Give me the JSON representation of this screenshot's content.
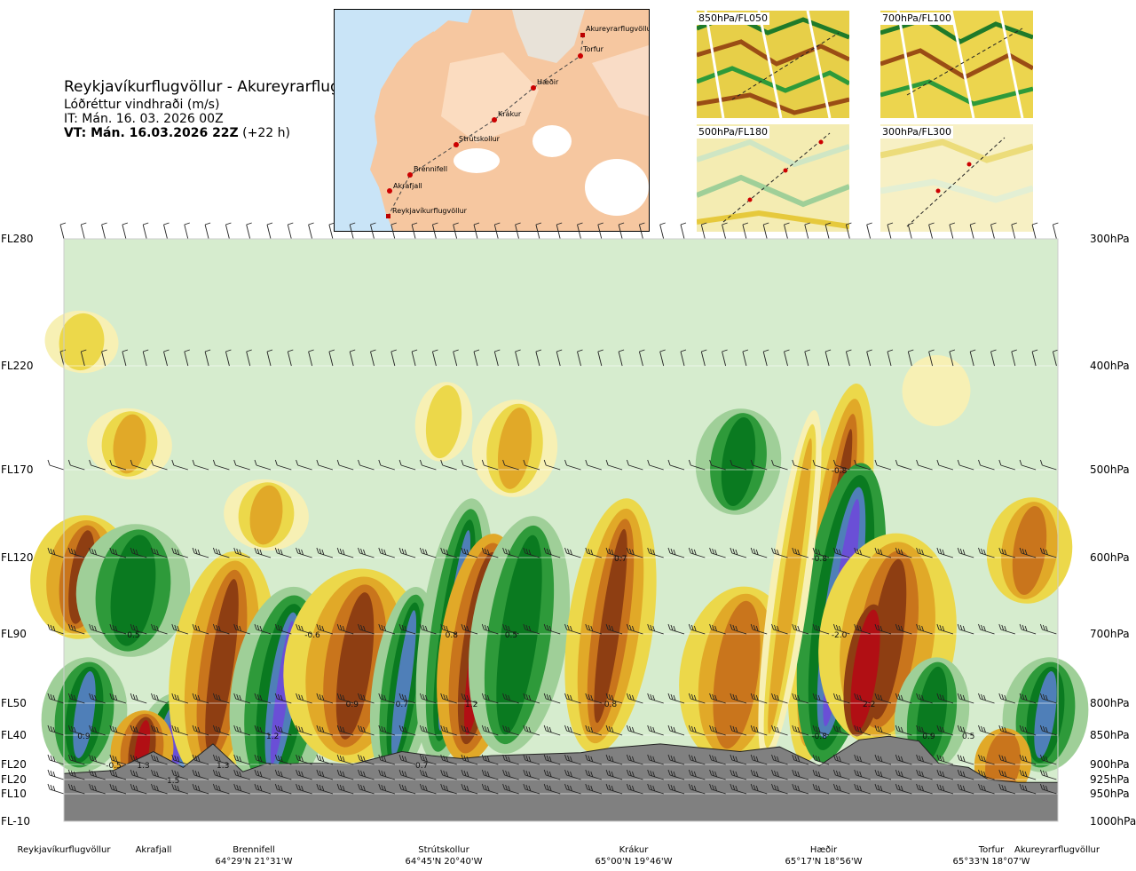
{
  "header": {
    "title": "Reykjavíkurflugvöllur - Akureyrarflugvöllur",
    "variable": "Lóðréttur vindhraði (m/s)",
    "issue_time": "IT: Mán. 16. 03. 2026 00Z",
    "valid_time": "VT: Mán. 16.03.2026 22Z",
    "lead_time": "(+22 h)"
  },
  "map": {
    "places": [
      "Akureyrarflugvöllur",
      "Torfur",
      "Hæðir",
      "Krákur",
      "Strútskollur",
      "Brennifell",
      "Akrafjall",
      "Reykjavíkurflugvöllur"
    ]
  },
  "thumbnails": [
    "850hPa/FL050",
    "700hPa/FL100",
    "500hPa/FL180",
    "300hPa/FL300"
  ],
  "chart_data": {
    "type": "heatmap",
    "title": "Reykjavíkurflugvöllur - Akureyrarflugvöllur",
    "variable": "Lóðréttur vindhraði (m/s)",
    "left_axis": [
      "FL280",
      "FL220",
      "FL170",
      "FL120",
      "FL90",
      "FL50",
      "FL40",
      "FL20",
      "FL20",
      "FL10",
      "FL-10"
    ],
    "right_axis": [
      "300hPa",
      "400hPa",
      "500hPa",
      "600hPa",
      "700hPa",
      "800hPa",
      "850hPa",
      "900hPa",
      "925hPa",
      "950hPa",
      "1000hPa"
    ],
    "pressure_levels_hPa": [
      300,
      400,
      500,
      600,
      700,
      800,
      850,
      900,
      925,
      950,
      1000
    ],
    "locations": [
      {
        "name": "Reykjavíkurflugvöllur",
        "coord": ""
      },
      {
        "name": "Akrafjall",
        "coord": ""
      },
      {
        "name": "Brennifell",
        "coord": "64°29'N 21°31'W"
      },
      {
        "name": "Strútskollur",
        "coord": "64°45'N 20°40'W"
      },
      {
        "name": "Krákur",
        "coord": "65°00'N 19°46'W"
      },
      {
        "name": "Hæðir",
        "coord": "65°17'N 18°56'W"
      },
      {
        "name": "Torfur",
        "coord": "65°33'N 18°07'W"
      },
      {
        "name": "Akureyrarflugvöllur",
        "coord": ""
      }
    ],
    "annotations": [
      {
        "text": "-0.8",
        "pos": 0.78,
        "hPa": 500
      },
      {
        "text": "0.7",
        "pos": 0.56,
        "hPa": 600
      },
      {
        "text": "-0.8",
        "pos": 0.76,
        "hPa": 600
      },
      {
        "text": "0.5",
        "pos": 0.07,
        "hPa": 700
      },
      {
        "text": "-0.6",
        "pos": 0.25,
        "hPa": 700
      },
      {
        "text": "0.8",
        "pos": 0.39,
        "hPa": 700
      },
      {
        "text": "0.5",
        "pos": 0.45,
        "hPa": 700
      },
      {
        "text": "-2.0",
        "pos": 0.78,
        "hPa": 700
      },
      {
        "text": "0.9",
        "pos": 0.29,
        "hPa": 800
      },
      {
        "text": "0.7",
        "pos": 0.34,
        "hPa": 800
      },
      {
        "text": "1.2",
        "pos": 0.41,
        "hPa": 800
      },
      {
        "text": "0.8",
        "pos": 0.55,
        "hPa": 800
      },
      {
        "text": "2.2",
        "pos": 0.81,
        "hPa": 800
      },
      {
        "text": "0.9",
        "pos": 0.02,
        "hPa": 850
      },
      {
        "text": "1.2",
        "pos": 0.21,
        "hPa": 850
      },
      {
        "text": "-0.8",
        "pos": 0.76,
        "hPa": 850
      },
      {
        "text": "0.9",
        "pos": 0.87,
        "hPa": 850
      },
      {
        "text": "0.5",
        "pos": 0.91,
        "hPa": 850
      },
      {
        "text": "-0.5",
        "pos": 0.05,
        "hPa": 900
      },
      {
        "text": "1.3",
        "pos": 0.08,
        "hPa": 900
      },
      {
        "text": "1.3",
        "pos": 0.16,
        "hPa": 900
      },
      {
        "text": "0.7",
        "pos": 0.36,
        "hPa": 900
      },
      {
        "text": "1.5",
        "pos": 0.11,
        "hPa": 925
      }
    ],
    "colors": {
      "strong_down": "#2a0590",
      "down_3": "#6a4fd6",
      "down_2": "#4f7fb8",
      "down_1": "#0a7a20",
      "down_05": "#2e9a3a",
      "down_02": "#9fcf98",
      "weak_down": "#d6ecce",
      "weak_up": "#f7f0b4",
      "up_02": "#ecd84a",
      "up_05": "#e1a928",
      "up_1": "#c9751c",
      "up_2": "#8e3e12",
      "up_3": "#b10f14",
      "terrain": "#808080"
    }
  }
}
